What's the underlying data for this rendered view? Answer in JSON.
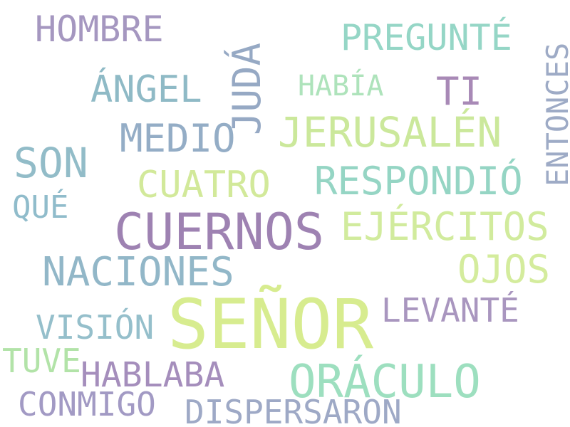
{
  "palette": {
    "purple": "#a08cb8",
    "blue_gray": "#93a8c2",
    "teal": "#8fd0c4",
    "light_green": "#cfe89a",
    "mint": "#a6e0b6",
    "steel_blue": "#94b9c8"
  },
  "words": [
    {
      "text": "HOMBRE",
      "color": "#a597c0"
    },
    {
      "text": "PREGUNTÉ",
      "color": "#95d6c6"
    },
    {
      "text": "JUDÁ",
      "color": "#96a9c4"
    },
    {
      "text": "ENTONCES",
      "color": "#9eabc6"
    },
    {
      "text": "ÁNGEL",
      "color": "#8fbac6"
    },
    {
      "text": "HABÍA",
      "color": "#aee3bb"
    },
    {
      "text": "TI",
      "color": "#a889b6"
    },
    {
      "text": "MEDIO",
      "color": "#94adc6"
    },
    {
      "text": "JERUSALÉN",
      "color": "#cbe89b"
    },
    {
      "text": "SON",
      "color": "#92bcc8"
    },
    {
      "text": "CUATRO",
      "color": "#d2e99a"
    },
    {
      "text": "RESPONDIÓ",
      "color": "#95d5c4"
    },
    {
      "text": "QUÉ",
      "color": "#90bccb"
    },
    {
      "text": "CUERNOS",
      "color": "#9e82b2"
    },
    {
      "text": "EJÉRCITOS",
      "color": "#d1eb9d"
    },
    {
      "text": "NACIONES",
      "color": "#92b7c8"
    },
    {
      "text": "OJOS",
      "color": "#d4ec9d"
    },
    {
      "text": "SEÑOR",
      "color": "#d7ec8f"
    },
    {
      "text": "LEVANTÉ",
      "color": "#a996bf"
    },
    {
      "text": "VISIÓN",
      "color": "#95bfcb"
    },
    {
      "text": "TUVE",
      "color": "#b2e3a8"
    },
    {
      "text": "HABLABA",
      "color": "#a58ebc"
    },
    {
      "text": "ORÁCULO",
      "color": "#9ddfbf"
    },
    {
      "text": "CONMIGO",
      "color": "#a29ac4"
    },
    {
      "text": "DISPERSARON",
      "color": "#9ea9c6"
    }
  ]
}
